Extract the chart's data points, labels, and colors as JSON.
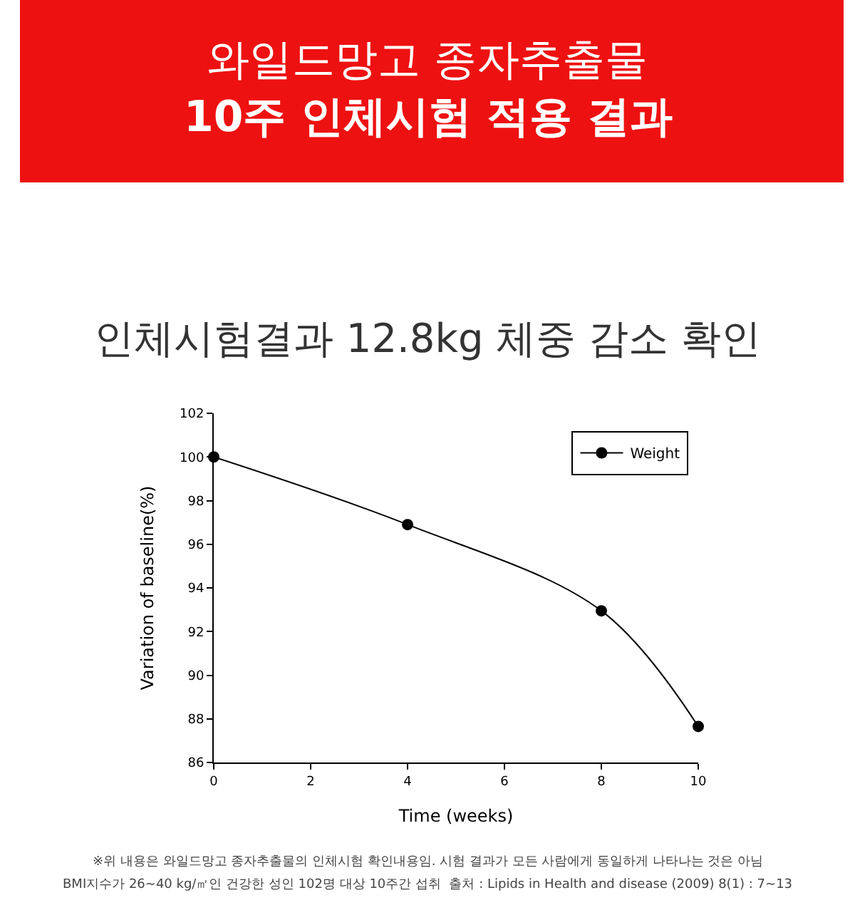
{
  "chart_data": {
    "type": "line",
    "title": "와일드망고 종자추출물\n10주 인체시험 적용 결과",
    "subtitle": "인체시험결과 12.8kg 체중 감소 확인",
    "xlabel": "Time (weeks)",
    "ylabel": "Variation of baseline(%)",
    "x": [
      0,
      4,
      8,
      10
    ],
    "series": [
      {
        "name": "Weight",
        "color": "#000000",
        "values": [
          100,
          96.9,
          92.95,
          87.65
        ]
      }
    ],
    "xlim": [
      0,
      10
    ],
    "xticks": [
      0,
      2,
      4,
      6,
      8,
      10
    ],
    "ylim": [
      86,
      102
    ],
    "yticks": [
      86,
      88,
      90,
      92,
      94,
      96,
      98,
      100,
      102
    ],
    "marker": "circle",
    "line_style": "solid",
    "legend": "top right",
    "annotations": [
      "※위 내용은 와일드망고 종자추출물의 인체시험 확인내용임. 시험 결과가 모든 사람에게 동일하게 나타나는 것은 아님",
      "BMI지수가 26~40 kg/㎡인 건강한 성인 102명 대상 10주간 섭취  출처 : Lipids in Health and disease (2009) 8(1) : 7~13"
    ]
  }
}
